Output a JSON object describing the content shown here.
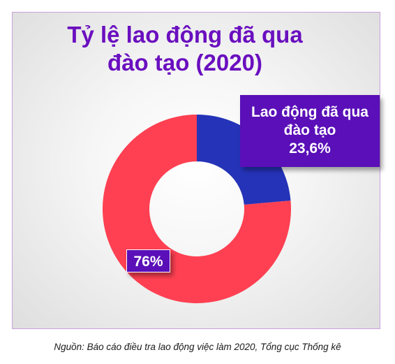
{
  "chart_data": {
    "type": "pie",
    "variant": "donut",
    "title": "Tỷ lệ lao động đã qua đào tạo (2020)",
    "title_lines": [
      "Tỷ lệ lao động đã qua",
      "đào tạo (2020)"
    ],
    "slices": [
      {
        "label": "Lao động đã qua đào tạo",
        "value": 23.6,
        "display": "23,6%",
        "color": "#2533b8"
      },
      {
        "label": "",
        "value": 76.4,
        "display": "76%",
        "color": "#fe4052"
      }
    ],
    "callouts": {
      "trained_lines": [
        "Lao động đã qua",
        "đào tạo",
        "23,6%"
      ],
      "other": "76%"
    },
    "legend": "none",
    "source": "Nguồn: Báo cáo điều tra lao động việc làm 2020, Tổng cục Thống kê",
    "colors": {
      "title": "#6a0fbf",
      "callout_bg": "#5a0fb8",
      "callout_text": "#ffffff"
    }
  }
}
